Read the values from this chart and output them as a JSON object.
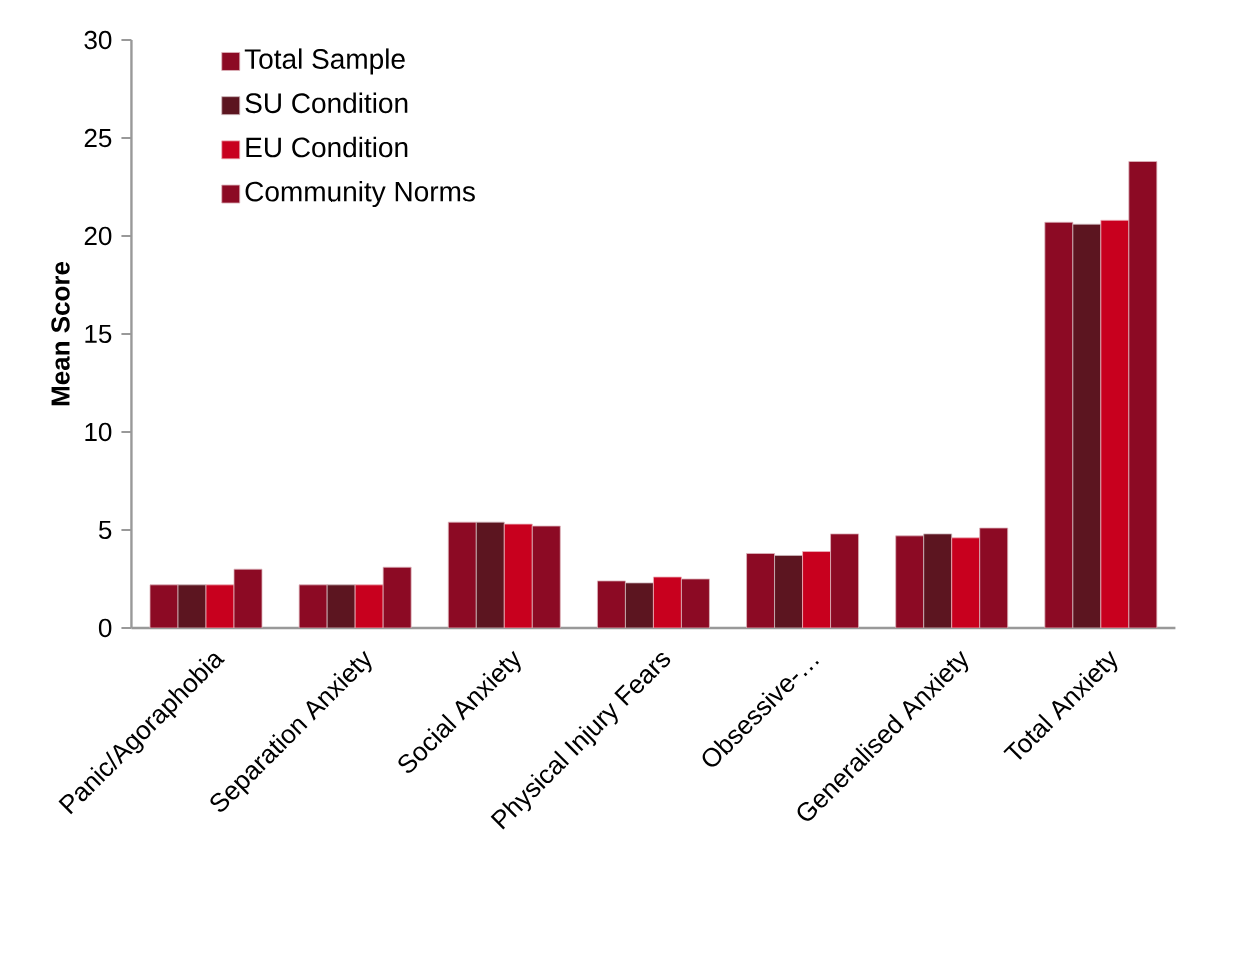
{
  "chart_data": {
    "type": "bar",
    "ylabel": "Mean Score",
    "categories": [
      "Panic/Agoraphobia",
      "Separation Anxiety",
      "Social Anxiety",
      "Physical Injury Fears",
      "Obsessive-…",
      "Generalised Anxiety",
      "Total Anxiety"
    ],
    "series": [
      {
        "name": "Total Sample",
        "color": "#8c0a24",
        "values": [
          2.2,
          2.2,
          5.4,
          2.4,
          3.8,
          4.7,
          20.7
        ]
      },
      {
        "name": "SU Condition",
        "color": "#5c1520",
        "values": [
          2.2,
          2.2,
          5.4,
          2.3,
          3.7,
          4.8,
          20.6
        ]
      },
      {
        "name": "EU Condition",
        "color": "#c8001e",
        "values": [
          2.2,
          2.2,
          5.3,
          2.6,
          3.9,
          4.6,
          20.8
        ]
      },
      {
        "name": "Community Norms",
        "color": "#8c0a24",
        "values": [
          3.0,
          3.1,
          5.2,
          2.5,
          4.8,
          5.1,
          23.8
        ]
      }
    ],
    "ylim": [
      0,
      30
    ],
    "yticks": [
      0,
      5,
      10,
      15,
      20,
      25,
      30
    ],
    "grid": false,
    "legend": "top left"
  }
}
